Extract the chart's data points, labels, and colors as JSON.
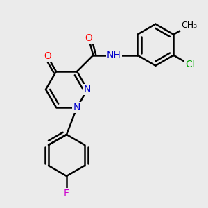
{
  "background_color": "#ebebeb",
  "bond_color": "#000000",
  "bond_width": 1.8,
  "atom_colors": {
    "O": "#ff0000",
    "N": "#0000cc",
    "F": "#cc00cc",
    "Cl": "#00aa00",
    "C": "#000000",
    "H": "#000000"
  },
  "font_size": 10,
  "fig_width": 3.0,
  "fig_height": 3.0,
  "dpi": 100
}
